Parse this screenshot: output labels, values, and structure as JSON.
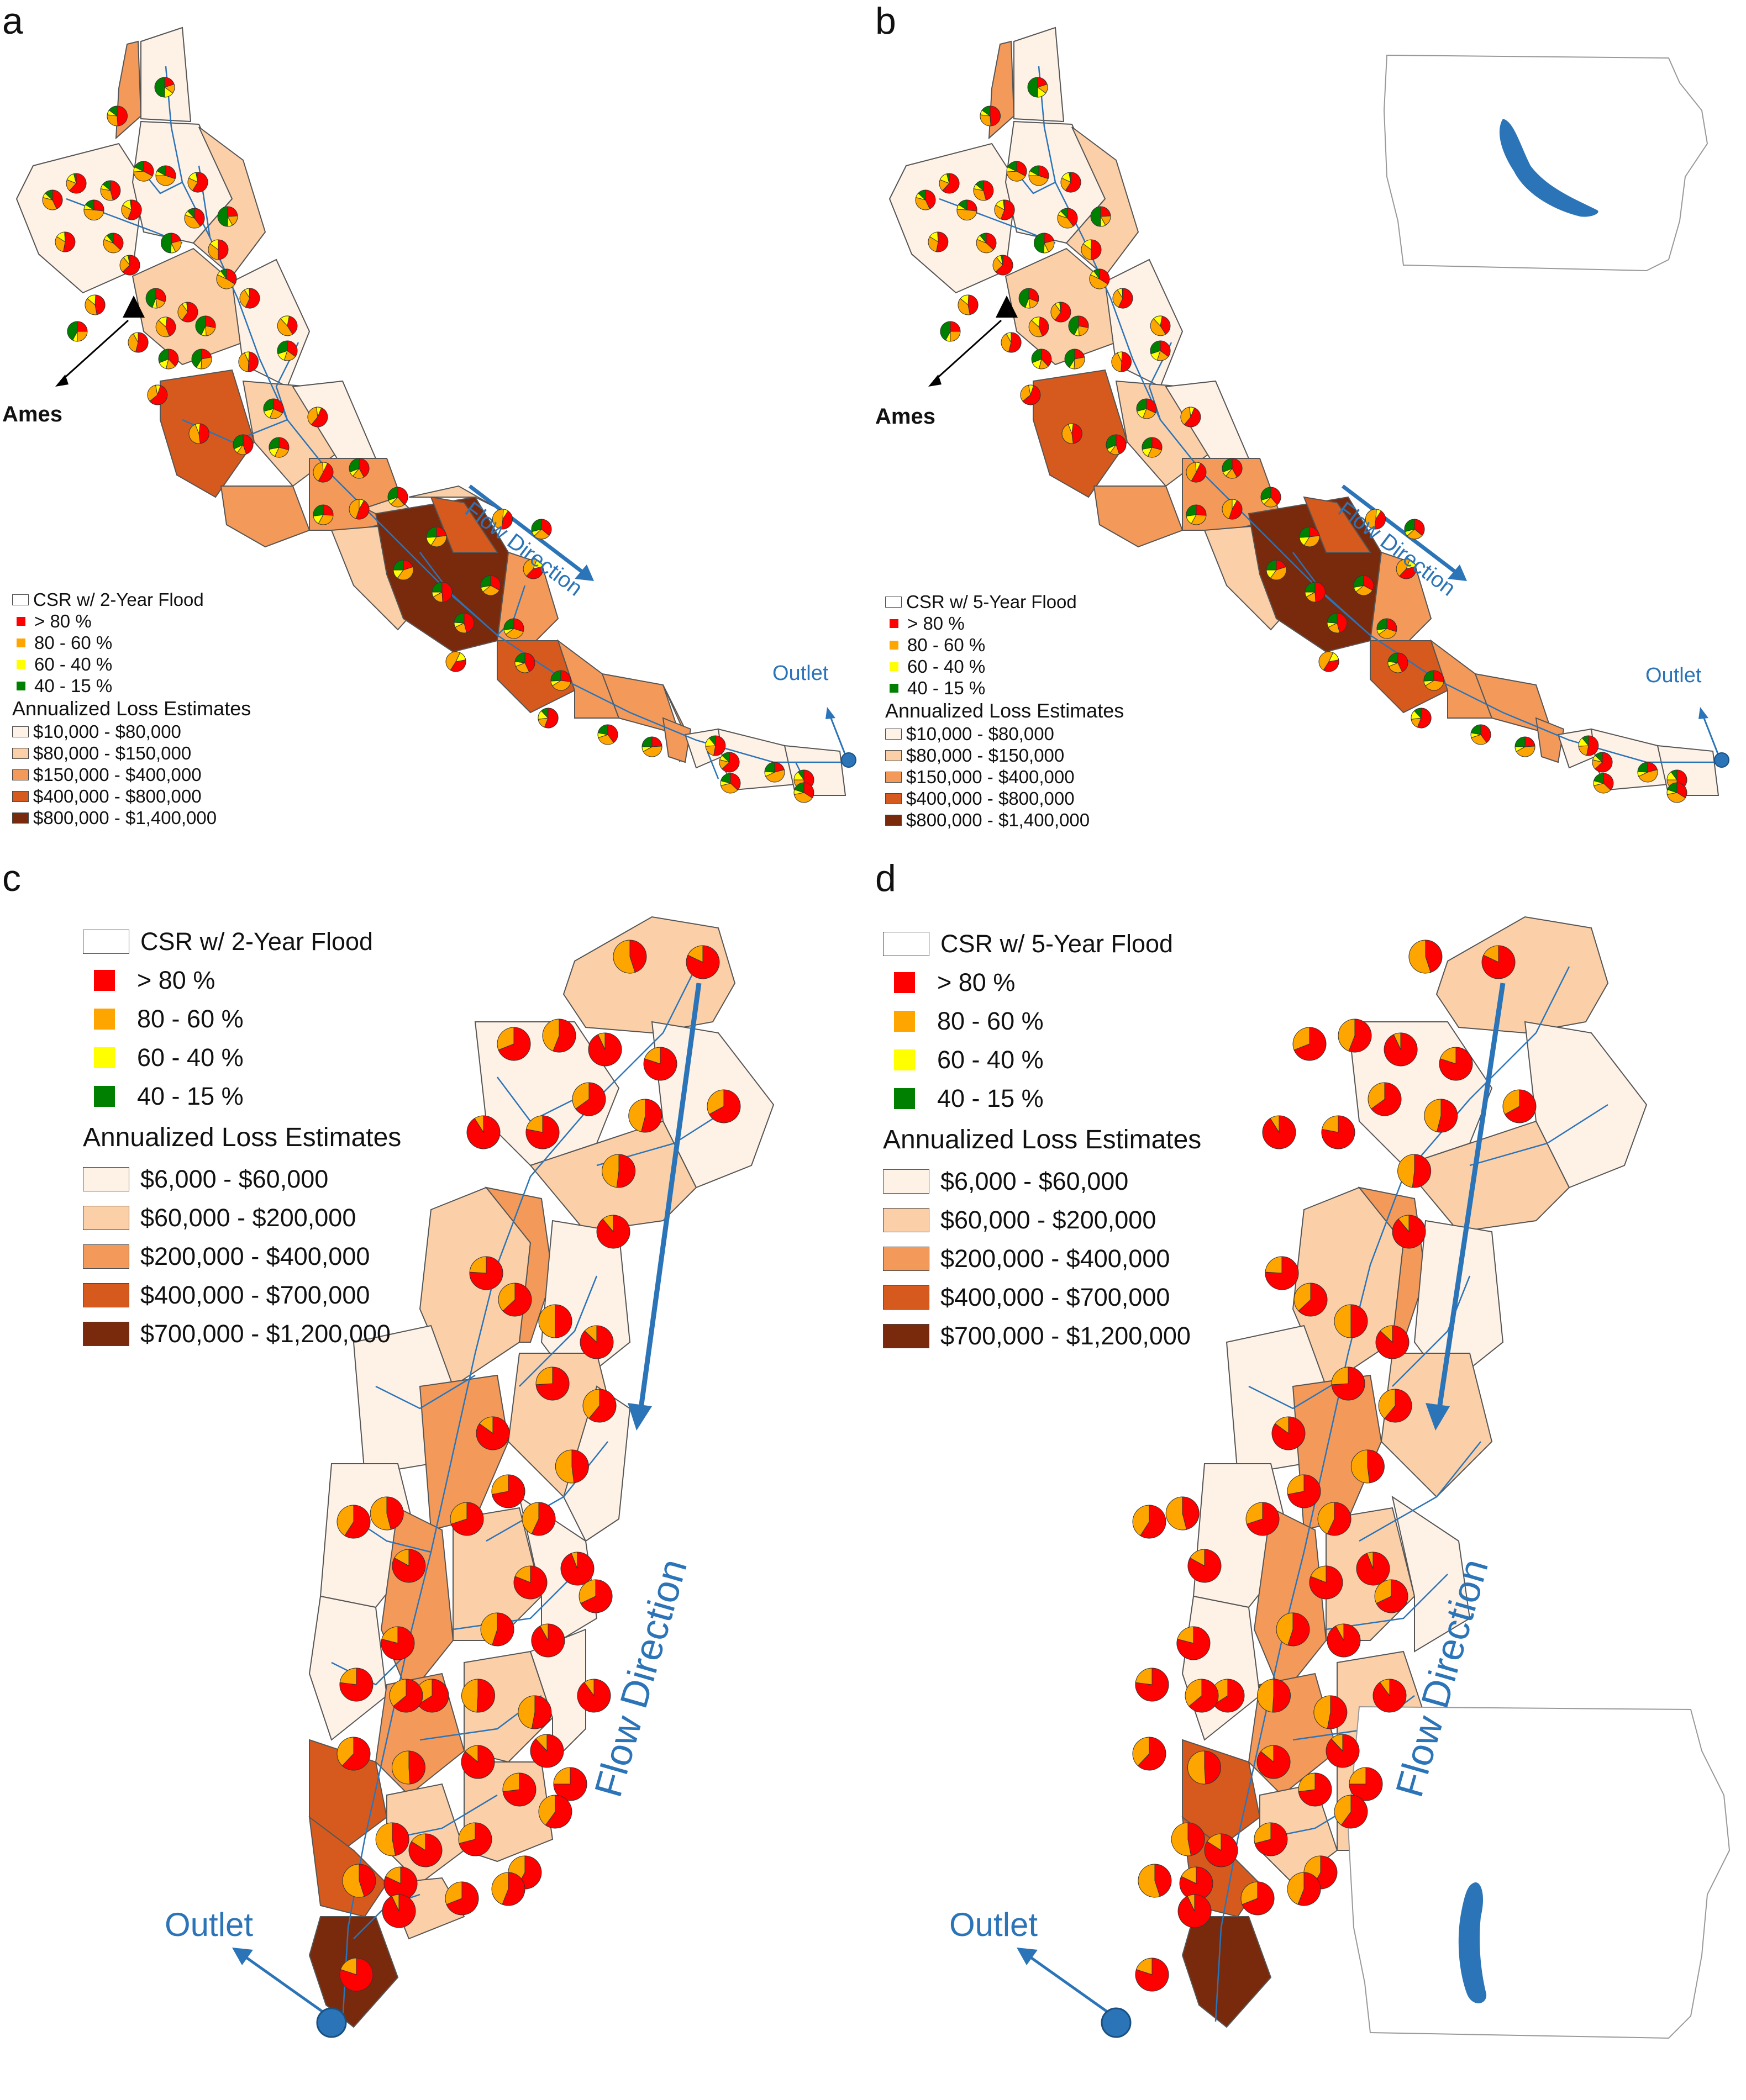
{
  "panels": [
    {
      "label": "a",
      "city": "Ames",
      "outlet": "Outlet",
      "flow": "Flow Direction",
      "legend_title": "CSR w/ 2-Year Flood",
      "csr_classes": [
        {
          "label": "> 80 %",
          "color": "#ff0000"
        },
        {
          "label": "80 - 60 %",
          "color": "#ffa500"
        },
        {
          "label": "60 - 40 %",
          "color": "#ffff00"
        },
        {
          "label": "40 - 15 %",
          "color": "#008000"
        }
      ],
      "loss_title": "Annualized Loss Estimates",
      "loss_classes": [
        {
          "label": "$10,000 - $80,000",
          "color": "#fef1e6"
        },
        {
          "label": "$80,000 - $150,000",
          "color": "#fbd0a8"
        },
        {
          "label": "$150,000 - $400,000",
          "color": "#f39a5a"
        },
        {
          "label": "$400,000 - $800,000",
          "color": "#d65a1e"
        },
        {
          "label": "$800,000 - $1,400,000",
          "color": "#7a2a0c"
        }
      ]
    },
    {
      "label": "b",
      "city": "Ames",
      "outlet": "Outlet",
      "flow": "Flow Direction",
      "legend_title": "CSR w/ 5-Year Flood",
      "csr_classes": [
        {
          "label": "> 80 %",
          "color": "#ff0000"
        },
        {
          "label": "80 - 60 %",
          "color": "#ffa500"
        },
        {
          "label": "60 - 40 %",
          "color": "#ffff00"
        },
        {
          "label": "40 - 15 %",
          "color": "#008000"
        }
      ],
      "loss_title": "Annualized Loss Estimates",
      "loss_classes": [
        {
          "label": "$10,000 - $80,000",
          "color": "#fef1e6"
        },
        {
          "label": "$80,000 - $150,000",
          "color": "#fbd0a8"
        },
        {
          "label": "$150,000 - $400,000",
          "color": "#f39a5a"
        },
        {
          "label": "$400,000 - $800,000",
          "color": "#d65a1e"
        },
        {
          "label": "$800,000 - $1,400,000",
          "color": "#7a2a0c"
        }
      ]
    },
    {
      "label": "c",
      "outlet": "Outlet",
      "flow": "Flow Direction",
      "legend_title": "CSR w/ 2-Year Flood",
      "csr_classes": [
        {
          "label": "> 80 %",
          "color": "#ff0000"
        },
        {
          "label": "80 - 60 %",
          "color": "#ffa500"
        },
        {
          "label": "60 - 40 %",
          "color": "#ffff00"
        },
        {
          "label": "40 - 15 %",
          "color": "#008000"
        }
      ],
      "loss_title": "Annualized Loss Estimates",
      "loss_classes": [
        {
          "label": "$6,000 - $60,000",
          "color": "#fef1e6"
        },
        {
          "label": "$60,000 - $200,000",
          "color": "#fbd0a8"
        },
        {
          "label": "$200,000 - $400,000",
          "color": "#f39a5a"
        },
        {
          "label": "$400,000 - $700,000",
          "color": "#d65a1e"
        },
        {
          "label": "$700,000 - $1,200,000",
          "color": "#7a2a0c"
        }
      ]
    },
    {
      "label": "d",
      "outlet": "Outlet",
      "flow": "Flow Direction",
      "legend_title": "CSR w/ 5-Year Flood",
      "csr_classes": [
        {
          "label": "> 80 %",
          "color": "#ff0000"
        },
        {
          "label": "80 - 60 %",
          "color": "#ffa500"
        },
        {
          "label": "60 - 40 %",
          "color": "#ffff00"
        },
        {
          "label": "40 - 15 %",
          "color": "#008000"
        }
      ],
      "loss_title": "Annualized Loss Estimates",
      "loss_classes": [
        {
          "label": "$6,000 - $60,000",
          "color": "#fef1e6"
        },
        {
          "label": "$60,000 - $200,000",
          "color": "#fbd0a8"
        },
        {
          "label": "$200,000 - $400,000",
          "color": "#f39a5a"
        },
        {
          "label": "$400,000 - $700,000",
          "color": "#d65a1e"
        },
        {
          "label": "$700,000 - $1,200,000",
          "color": "#7a2a0c"
        }
      ]
    }
  ],
  "colors": {
    "river": "#2b74b8",
    "boundary": "#555555",
    "city_marker": "#000000",
    "locator_fill": "#2b74b8",
    "locator_outline": "#999999"
  }
}
